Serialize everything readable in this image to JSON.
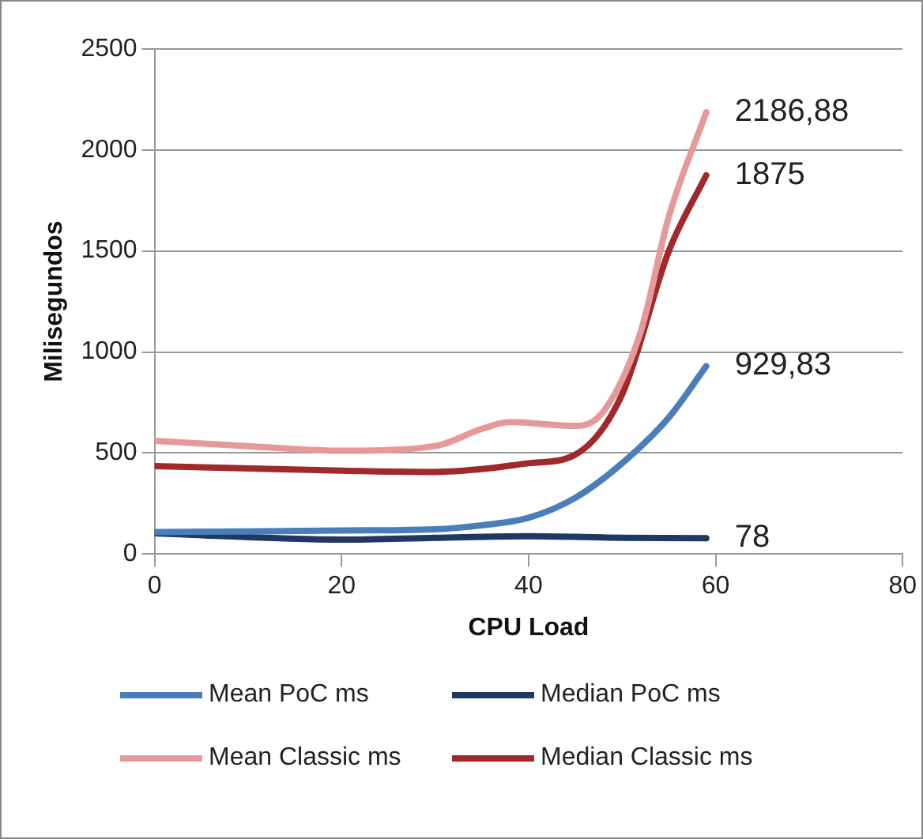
{
  "chart_data": {
    "type": "line",
    "xlabel": "CPU Load",
    "ylabel": "Milisegundos",
    "xlim": [
      0,
      80
    ],
    "xticks": [
      0,
      20,
      40,
      60,
      80
    ],
    "ylim": [
      0,
      2500
    ],
    "yticks": [
      0,
      500,
      1000,
      1500,
      2000,
      2500
    ],
    "grid": "y",
    "legend": "bottom",
    "marker": "none",
    "line_style": "solid",
    "series": [
      {
        "name": "Mean PoC ms",
        "color": "#4a7ebb",
        "x": [
          0,
          20,
          30,
          35,
          40,
          45,
          50,
          55,
          59
        ],
        "values": [
          108,
          116,
          122,
          142,
          179,
          278,
          449,
          676,
          929.83
        ],
        "value_labels": [
          null,
          null,
          null,
          null,
          null,
          null,
          null,
          null,
          "929,83"
        ]
      },
      {
        "name": "Median PoC ms",
        "color": "#1f3864",
        "x": [
          0,
          20,
          30,
          40,
          50,
          59
        ],
        "values": [
          102,
          71,
          80,
          88,
          80,
          78
        ],
        "value_labels": [
          null,
          null,
          null,
          null,
          null,
          "78"
        ]
      },
      {
        "name": "Mean Classic ms",
        "color": "#e6999a",
        "x": [
          0,
          10,
          20,
          30,
          35,
          38,
          45,
          48,
          52,
          55,
          59
        ],
        "values": [
          560,
          534,
          511,
          534,
          619,
          653,
          634,
          705,
          1102,
          1670,
          2186.88
        ],
        "value_labels": [
          null,
          null,
          null,
          null,
          null,
          null,
          null,
          null,
          null,
          null,
          "2186,88"
        ]
      },
      {
        "name": "Median Classic ms",
        "color": "#a0292b",
        "x": [
          0,
          20,
          30,
          35,
          40,
          45,
          50,
          55,
          59
        ],
        "values": [
          435,
          412,
          406,
          420,
          449,
          492,
          790,
          1500,
          1875
        ],
        "value_labels": [
          null,
          null,
          null,
          null,
          null,
          null,
          null,
          null,
          "1875"
        ]
      }
    ]
  }
}
